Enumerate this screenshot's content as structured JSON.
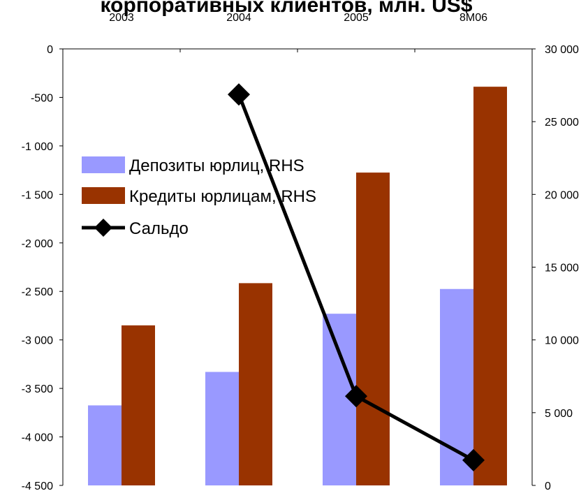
{
  "chart_data": {
    "type": "bar",
    "title": "корпоративных клиентов, млн. US$",
    "categories": [
      "2003",
      "2004",
      "2005",
      "8M06"
    ],
    "series": [
      {
        "name": "Депозиты юрлиц, RHS",
        "type": "bar",
        "axis": "right",
        "color": "#9999ff",
        "values": [
          5500,
          7800,
          11800,
          13500
        ]
      },
      {
        "name": "Кредиты юрлицам, RHS",
        "type": "bar",
        "axis": "right",
        "color": "#993300",
        "values": [
          11000,
          13900,
          21500,
          27400
        ]
      },
      {
        "name": "Сальдо",
        "type": "line",
        "axis": "left",
        "color": "#000000",
        "marker": "diamond",
        "values": [
          null,
          -470,
          -3580,
          -4240
        ]
      }
    ],
    "y_left": {
      "range": [
        -4500,
        0
      ],
      "ticks": [
        0,
        -500,
        -1000,
        -1500,
        -2000,
        -2500,
        -3000,
        -3500,
        -4000,
        -4500
      ],
      "tick_labels": [
        "0",
        "-500",
        "-1 000",
        "-1 500",
        "-2 000",
        "-2 500",
        "-3 000",
        "-3 500",
        "-4 000",
        "-4 500"
      ]
    },
    "y_right": {
      "range": [
        0,
        30000
      ],
      "ticks": [
        0,
        5000,
        10000,
        15000,
        20000,
        25000,
        30000
      ],
      "tick_labels": [
        "0",
        "5 000",
        "10 000",
        "15 000",
        "20 000",
        "25 000",
        "30 000"
      ]
    },
    "x_axis_position": "top",
    "grid": false,
    "legend_position": "top-left, inside plot"
  }
}
